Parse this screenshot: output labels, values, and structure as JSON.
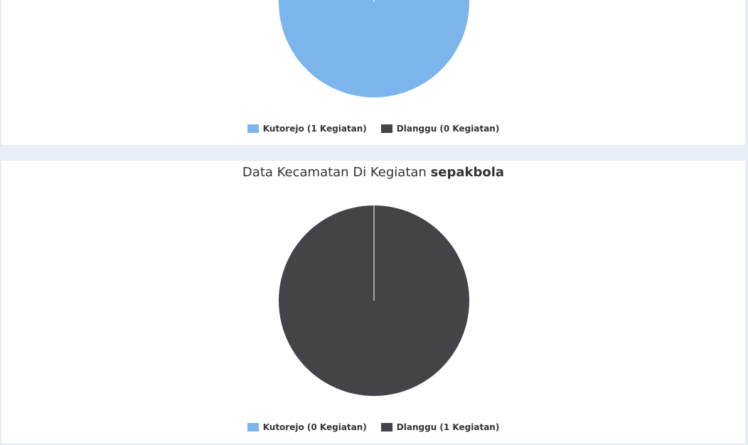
{
  "chart_data": [
    {
      "type": "pie",
      "title": "",
      "categories": [
        "Kutorejo",
        "Dlanggu"
      ],
      "values": [
        1,
        0
      ],
      "colors": [
        "#7cb5ec",
        "#434348"
      ],
      "legend": [
        "Kutorejo (1 Kegiatan)",
        "Dlanggu (0 Kegiatan)"
      ],
      "legend_position": "bottom-center"
    },
    {
      "type": "pie",
      "title_prefix": "Data Kecamatan Di Kegiatan ",
      "title_bold": "sepakbola",
      "categories": [
        "Kutorejo",
        "Dlanggu"
      ],
      "values": [
        0,
        1
      ],
      "colors": [
        "#7cb5ec",
        "#434348"
      ],
      "legend": [
        "Kutorejo (0 Kegiatan)",
        "Dlanggu (1 Kegiatan)"
      ],
      "legend_position": "bottom-center"
    }
  ]
}
